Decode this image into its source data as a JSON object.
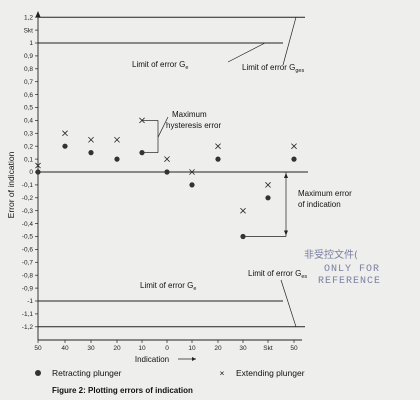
{
  "chart_data": {
    "type": "scatter",
    "caption": "Figure 2: Plotting errors of indication",
    "xlabel": "Indication",
    "ylabel": "Error of indication",
    "ylim": [
      -1.2,
      1.2
    ],
    "y_ticks": [
      "1,2",
      "Skt",
      "1",
      "0,9",
      "0,8",
      "0,7",
      "0,6",
      "0,5",
      "0,4",
      "0,3",
      "0,2",
      "0,1",
      "0",
      "-0,1",
      "-0,2",
      "-0,3",
      "-0,4",
      "-0,5",
      "-0,6",
      "-0,7",
      "-0,8",
      "-0,9",
      "-1",
      "-1,1",
      "-1,2"
    ],
    "x_ticks": [
      "50",
      "40",
      "30",
      "20",
      "10",
      "0",
      "10",
      "20",
      "30",
      "Skt",
      "50"
    ],
    "series": [
      {
        "name": "Retracting plunger",
        "marker": "dot",
        "values": [
          0,
          0.2,
          0.15,
          0.1,
          0.15,
          0,
          -0.1,
          0.1,
          -0.5,
          -0.2,
          0.1
        ]
      },
      {
        "name": "Extending plunger",
        "marker": "x",
        "values": [
          0.05,
          0.3,
          0.25,
          0.25,
          0.4,
          0.1,
          0,
          0.2,
          -0.3,
          -0.1,
          0.2
        ]
      }
    ],
    "limits": {
      "upper_inner": 1,
      "upper_outer": 1.2,
      "lower_inner": -1,
      "lower_outer": -1.2
    },
    "annotations": {
      "limit_ge_upper": "Limit of error G",
      "limit_ge_upper_sub": "e",
      "limit_ggs": "Limit of error G",
      "limit_ggs_sub": "ges",
      "max_hysteresis_line1": "Maximum",
      "max_hysteresis_line2": "hysteresis error",
      "max_error_line1": "Maximum error",
      "max_error_line2": "of indication",
      "limit_ge_lower": "Limit of error G",
      "limit_ge_lower_sub": "e",
      "limit_ges_lower": "Limit of error G",
      "limit_ges_lower_sub": "es"
    },
    "stamp": {
      "line1": "非受控文件(",
      "line2": "ONLY FOR",
      "line3": "REFERENCE"
    },
    "colors": {
      "axis": "#222222",
      "marker": "#333333",
      "stamp": "#7a7fa3",
      "background": "#eeeeec"
    }
  }
}
